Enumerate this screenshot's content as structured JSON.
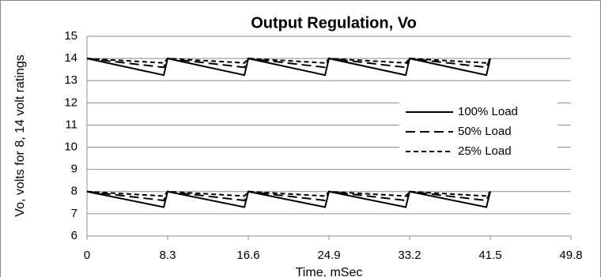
{
  "chart_data": {
    "type": "line",
    "title": "Output Regulation, Vo",
    "x_label": "Time, mSec",
    "y_label": "Vo, volts for 8, 14 volt ratings",
    "x": [
      0,
      7.9,
      8.3,
      16.2,
      16.6,
      24.5,
      24.9,
      32.8,
      33.2,
      41.1,
      41.5
    ],
    "xlim": [
      0,
      49.8
    ],
    "xticks": [
      0,
      8.3,
      16.6,
      24.9,
      33.2,
      41.5,
      49.8
    ],
    "ylim": [
      6,
      15
    ],
    "yticks": [
      6,
      7,
      8,
      9,
      10,
      11,
      12,
      13,
      14,
      15
    ],
    "grid": true,
    "legend": "right",
    "series": [
      {
        "name": "100% Load",
        "color": "#000000",
        "dash": "solid",
        "traces": [
          [
            14,
            13.25,
            14,
            13.25,
            14,
            13.25,
            14,
            13.25,
            14,
            13.25,
            14
          ],
          [
            8,
            7.3,
            8,
            7.3,
            8,
            7.3,
            8,
            7.3,
            8,
            7.3,
            8
          ]
        ]
      },
      {
        "name": "50% Load",
        "color": "#000000",
        "dash": "long",
        "traces": [
          [
            14,
            13.6,
            14,
            13.6,
            14,
            13.6,
            14,
            13.6,
            14,
            13.6,
            14
          ],
          [
            8,
            7.6,
            8,
            7.6,
            8,
            7.6,
            8,
            7.6,
            8,
            7.6,
            8
          ]
        ]
      },
      {
        "name": "25% Load",
        "color": "#000000",
        "dash": "short",
        "traces": [
          [
            14,
            13.8,
            14,
            13.8,
            14,
            13.8,
            14,
            13.8,
            14,
            13.8,
            14
          ],
          [
            8,
            7.8,
            8,
            7.8,
            8,
            7.8,
            8,
            7.8,
            8,
            7.8,
            8
          ]
        ]
      }
    ]
  }
}
